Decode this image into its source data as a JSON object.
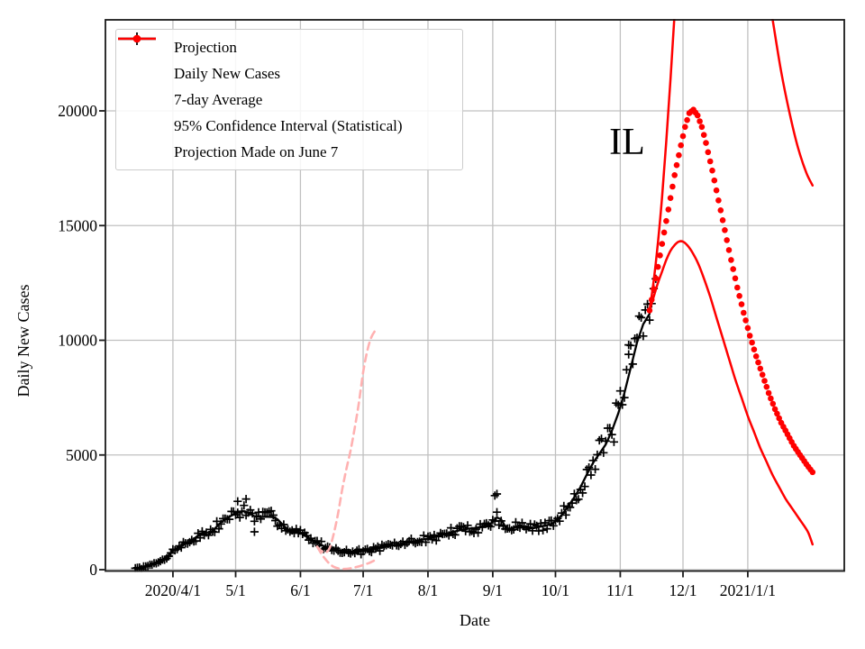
{
  "chart_data": {
    "type": "line",
    "title": "",
    "xlabel": "Date",
    "ylabel": "Daily New Cases",
    "x_unit": "days_since_2020-03-01",
    "x_domain_days": [
      -1,
      352
    ],
    "ylim": [
      0,
      24000
    ],
    "grid": true,
    "legend_position": "upper left",
    "annotation": {
      "text": "IL"
    },
    "x_ticks": [
      {
        "day": 31,
        "label": "2020/4/1"
      },
      {
        "day": 61,
        "label": "5/1"
      },
      {
        "day": 92,
        "label": "6/1"
      },
      {
        "day": 122,
        "label": "7/1"
      },
      {
        "day": 153,
        "label": "8/1"
      },
      {
        "day": 184,
        "label": "9/1"
      },
      {
        "day": 214,
        "label": "10/1"
      },
      {
        "day": 245,
        "label": "11/1"
      },
      {
        "day": 275,
        "label": "12/1"
      },
      {
        "day": 306,
        "label": "2021/1/1"
      }
    ],
    "y_ticks": [
      {
        "value": 0,
        "label": "0"
      },
      {
        "value": 5000,
        "label": "5000"
      },
      {
        "value": 10000,
        "label": "10000"
      },
      {
        "value": 15000,
        "label": "15000"
      },
      {
        "value": 20000,
        "label": "20000"
      }
    ],
    "series": [
      {
        "name": "7-day Average",
        "type": "line",
        "color": "#000000",
        "width": 2.3,
        "points": [
          [
            13,
            20
          ],
          [
            17,
            100
          ],
          [
            21,
            210
          ],
          [
            25,
            360
          ],
          [
            28,
            540
          ],
          [
            31,
            820
          ],
          [
            34,
            1010
          ],
          [
            37,
            1130
          ],
          [
            40,
            1270
          ],
          [
            43,
            1490
          ],
          [
            46,
            1560
          ],
          [
            48,
            1500
          ],
          [
            51,
            1790
          ],
          [
            54,
            2060
          ],
          [
            57,
            2260
          ],
          [
            60,
            2410
          ],
          [
            63,
            2530
          ],
          [
            65,
            2550
          ],
          [
            67,
            2480
          ],
          [
            70,
            2330
          ],
          [
            73,
            2290
          ],
          [
            76,
            2310
          ],
          [
            79,
            2290
          ],
          [
            81,
            2200
          ],
          [
            83,
            2010
          ],
          [
            85,
            1830
          ],
          [
            87,
            1690
          ],
          [
            89,
            1650
          ],
          [
            91,
            1660
          ],
          [
            93,
            1560
          ],
          [
            95,
            1440
          ],
          [
            97,
            1330
          ],
          [
            99,
            1220
          ],
          [
            101,
            1130
          ],
          [
            103,
            1030
          ],
          [
            105,
            960
          ],
          [
            108,
            890
          ],
          [
            111,
            830
          ],
          [
            114,
            790
          ],
          [
            117,
            760
          ],
          [
            120,
            790
          ],
          [
            124,
            840
          ],
          [
            128,
            905
          ],
          [
            132,
            985
          ],
          [
            136,
            1060
          ],
          [
            140,
            1125
          ],
          [
            144,
            1195
          ],
          [
            148,
            1265
          ],
          [
            152,
            1335
          ],
          [
            156,
            1425
          ],
          [
            160,
            1525
          ],
          [
            164,
            1625
          ],
          [
            168,
            1715
          ],
          [
            172,
            1785
          ],
          [
            176,
            1825
          ],
          [
            180,
            1905
          ],
          [
            183,
            2005
          ],
          [
            185,
            2180
          ],
          [
            186,
            2280
          ],
          [
            188,
            2190
          ],
          [
            191,
            1730
          ],
          [
            194,
            1830
          ],
          [
            197,
            1935
          ],
          [
            200,
            1835
          ],
          [
            203,
            1795
          ],
          [
            206,
            1865
          ],
          [
            209,
            1925
          ],
          [
            212,
            1985
          ],
          [
            214,
            2105
          ],
          [
            217,
            2385
          ],
          [
            220,
            2755
          ],
          [
            223,
            3155
          ],
          [
            226,
            3605
          ],
          [
            229,
            4155
          ],
          [
            232,
            4655
          ],
          [
            235,
            5055
          ],
          [
            238,
            5455
          ],
          [
            241,
            6055
          ],
          [
            244,
            6805
          ],
          [
            247,
            7705
          ],
          [
            250,
            8805
          ],
          [
            253,
            9905
          ],
          [
            256,
            10705
          ],
          [
            259,
            11150
          ]
        ]
      },
      {
        "name": "Daily New Cases",
        "type": "scatter-plus",
        "color": "#000000",
        "follows": "7-day Average",
        "day_range": [
          13,
          259
        ],
        "noise": {
          "seed": 7,
          "rel": 0.12,
          "abs": 55
        },
        "outliers": [
          [
            62,
            2980
          ],
          [
            66,
            3080
          ],
          [
            70,
            1650
          ],
          [
            185,
            3230
          ],
          [
            186,
            3300
          ],
          [
            249,
            9800
          ],
          [
            260,
            11600
          ],
          [
            261,
            12250
          ],
          [
            262,
            12680
          ]
        ]
      },
      {
        "name": "Projection",
        "type": "dots",
        "color": "#ff0000",
        "radius": 3.3,
        "day_step": 1,
        "points": [
          [
            259,
            11300
          ],
          [
            262,
            12700
          ],
          [
            265,
            14200
          ],
          [
            268,
            15700
          ],
          [
            271,
            17200
          ],
          [
            274,
            18500
          ],
          [
            276,
            19300
          ],
          [
            278,
            19900
          ],
          [
            280,
            20050
          ],
          [
            282,
            19800
          ],
          [
            284,
            19300
          ],
          [
            286,
            18600
          ],
          [
            289,
            17400
          ],
          [
            292,
            16100
          ],
          [
            295,
            14800
          ],
          [
            298,
            13500
          ],
          [
            301,
            12300
          ],
          [
            304,
            11200
          ],
          [
            307,
            10200
          ],
          [
            310,
            9300
          ],
          [
            313,
            8500
          ],
          [
            316,
            7700
          ],
          [
            319,
            7000
          ],
          [
            322,
            6400
          ],
          [
            325,
            5900
          ],
          [
            328,
            5400
          ],
          [
            331,
            5000
          ],
          [
            334,
            4600
          ],
          [
            337,
            4250
          ]
        ]
      },
      {
        "name": "95% Confidence Interval Upper",
        "type": "line",
        "color": "#ff0000",
        "width": 2.5,
        "smooth": true,
        "points": [
          [
            259,
            11300
          ],
          [
            261,
            12600
          ],
          [
            263,
            14250
          ],
          [
            265,
            16250
          ],
          [
            267,
            18650
          ],
          [
            269,
            21350
          ],
          [
            271,
            24250
          ],
          [
            274,
            28500
          ],
          [
            280,
            34500
          ],
          [
            288,
            38000
          ],
          [
            296,
            36500
          ],
          [
            304,
            32500
          ],
          [
            310,
            28800
          ],
          [
            314,
            26200
          ],
          [
            318,
            23900
          ],
          [
            322,
            21700
          ],
          [
            326,
            19900
          ],
          [
            330,
            18400
          ],
          [
            334,
            17300
          ],
          [
            337,
            16750
          ]
        ]
      },
      {
        "name": "95% Confidence Interval Lower",
        "type": "line",
        "color": "#ff0000",
        "width": 2.5,
        "smooth": true,
        "points": [
          [
            259,
            11300
          ],
          [
            261,
            11900
          ],
          [
            263,
            12500
          ],
          [
            265,
            13000
          ],
          [
            267,
            13500
          ],
          [
            269,
            13900
          ],
          [
            271,
            14150
          ],
          [
            273,
            14300
          ],
          [
            275,
            14300
          ],
          [
            277,
            14150
          ],
          [
            279,
            13900
          ],
          [
            282,
            13400
          ],
          [
            285,
            12700
          ],
          [
            288,
            11900
          ],
          [
            291,
            11000
          ],
          [
            294,
            10100
          ],
          [
            297,
            9200
          ],
          [
            300,
            8300
          ],
          [
            303,
            7500
          ],
          [
            306,
            6700
          ],
          [
            309,
            6000
          ],
          [
            312,
            5300
          ],
          [
            315,
            4700
          ],
          [
            318,
            4100
          ],
          [
            321,
            3600
          ],
          [
            324,
            3100
          ],
          [
            327,
            2700
          ],
          [
            330,
            2300
          ],
          [
            333,
            1900
          ],
          [
            335,
            1600
          ],
          [
            337,
            1100
          ]
        ]
      },
      {
        "name": "Projection Made on June 7 Upper",
        "type": "line",
        "color": "#ffb1b1",
        "width": 2.6,
        "dash": "8 5.5",
        "smooth": true,
        "points": [
          [
            100,
            1000
          ],
          [
            102,
            820
          ],
          [
            104,
            745
          ],
          [
            106,
            950
          ],
          [
            108,
            1600
          ],
          [
            110,
            2450
          ],
          [
            112,
            3500
          ],
          [
            114,
            4400
          ],
          [
            116,
            5200
          ],
          [
            118,
            6200
          ],
          [
            120,
            7300
          ],
          [
            122,
            8600
          ],
          [
            124,
            9550
          ],
          [
            126,
            10150
          ],
          [
            128.5,
            10520
          ]
        ]
      },
      {
        "name": "Projection Made on June 7 Lower",
        "type": "line",
        "color": "#ffb1b1",
        "width": 2.6,
        "dash": "8 5.5",
        "smooth": true,
        "points": [
          [
            100,
            1000
          ],
          [
            102,
            700
          ],
          [
            104,
            450
          ],
          [
            106,
            250
          ],
          [
            108,
            120
          ],
          [
            110,
            60
          ],
          [
            113,
            30
          ],
          [
            116,
            60
          ],
          [
            119,
            120
          ],
          [
            122,
            200
          ],
          [
            125,
            300
          ],
          [
            128,
            430
          ]
        ]
      }
    ],
    "legend": {
      "entries": [
        {
          "marker": "dot",
          "color": "#ff0000",
          "label": "Projection"
        },
        {
          "marker": "plus",
          "color": "#000000",
          "label": "Daily New Cases"
        },
        {
          "marker": "line",
          "color": "#000000",
          "label": "7-day Average"
        },
        {
          "marker": "dot",
          "color": "#ff0000",
          "label": "95% Confidence Interval (Statistical)"
        },
        {
          "marker": "line",
          "color": "#ff0000",
          "label": "Projection Made on June 7"
        }
      ]
    },
    "style": {
      "grid_color": "#c0c0c0",
      "spine_color": "#1a1a1a",
      "red": "#ff0000",
      "pink_dashed": "#ffb1b1",
      "background": "#ffffff"
    }
  }
}
